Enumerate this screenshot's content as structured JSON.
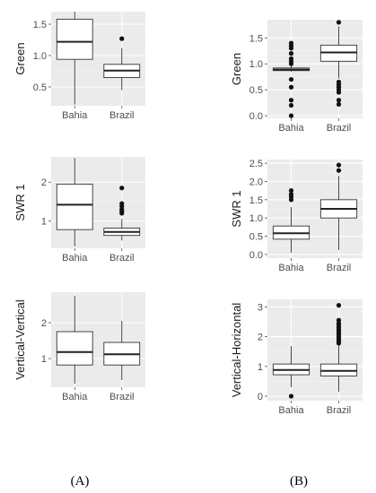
{
  "panel_labels": [
    "(A)",
    "(B)"
  ],
  "chart_data": [
    {
      "type": "box",
      "column": "A",
      "ylabel": "Green",
      "categories": [
        "Bahia",
        "Brazil"
      ],
      "ylim": [
        0.2,
        1.7
      ],
      "yticks": [
        0.5,
        1.0,
        1.5
      ],
      "tick_labels": [
        "0.5",
        "1.0",
        "1.5"
      ],
      "grid": true,
      "boxes": [
        {
          "name": "Bahia",
          "min": 0.22,
          "q1": 0.94,
          "median": 1.22,
          "q3": 1.58,
          "max": 1.7,
          "outliers": []
        },
        {
          "name": "Brazil",
          "min": 0.45,
          "q1": 0.65,
          "median": 0.76,
          "q3": 0.86,
          "max": 1.12,
          "outliers": [
            1.27
          ]
        }
      ]
    },
    {
      "type": "box",
      "column": "B",
      "ylabel": "Green",
      "categories": [
        "Bahia",
        "Brazil"
      ],
      "ylim": [
        -0.05,
        1.85
      ],
      "yticks": [
        0.0,
        0.5,
        1.0,
        1.5
      ],
      "tick_labels": [
        "0.0",
        "0.5",
        "1.0",
        "1.5"
      ],
      "grid": true,
      "boxes": [
        {
          "name": "Bahia",
          "min": 0.85,
          "q1": 0.87,
          "median": 0.89,
          "q3": 0.92,
          "max": 0.96,
          "outliers": [
            0.0,
            0.2,
            0.3,
            0.55,
            0.7,
            1.0,
            1.05,
            1.1,
            1.2,
            1.3,
            1.35,
            1.4
          ]
        },
        {
          "name": "Brazil",
          "min": 0.72,
          "q1": 1.05,
          "median": 1.22,
          "q3": 1.36,
          "max": 1.72,
          "outliers": [
            0.22,
            0.3,
            0.45,
            0.5,
            0.55,
            0.6,
            0.65,
            1.8
          ]
        }
      ]
    },
    {
      "type": "box",
      "column": "A",
      "ylabel": "SWR 1",
      "categories": [
        "Bahia",
        "Brazil"
      ],
      "ylim": [
        0.3,
        2.65
      ],
      "yticks": [
        1,
        2
      ],
      "tick_labels": [
        "1",
        "2"
      ],
      "grid": true,
      "boxes": [
        {
          "name": "Bahia",
          "min": 0.35,
          "q1": 0.78,
          "median": 1.42,
          "q3": 1.95,
          "max": 2.62,
          "outliers": []
        },
        {
          "name": "Brazil",
          "min": 0.5,
          "q1": 0.63,
          "median": 0.72,
          "q3": 0.82,
          "max": 1.05,
          "outliers": [
            1.2,
            1.25,
            1.3,
            1.38,
            1.45,
            1.85
          ]
        }
      ]
    },
    {
      "type": "box",
      "column": "B",
      "ylabel": "SWR 1",
      "categories": [
        "Bahia",
        "Brazil"
      ],
      "ylim": [
        -0.1,
        2.6
      ],
      "yticks": [
        0.0,
        0.5,
        1.0,
        1.5,
        2.0,
        2.5
      ],
      "tick_labels": [
        "0.0",
        "0.5",
        "1.0",
        "1.5",
        "2.0",
        "2.5"
      ],
      "grid": true,
      "boxes": [
        {
          "name": "Bahia",
          "min": 0.05,
          "q1": 0.42,
          "median": 0.58,
          "q3": 0.78,
          "max": 1.3,
          "outliers": [
            1.5,
            1.58,
            1.65,
            1.75
          ]
        },
        {
          "name": "Brazil",
          "min": 0.12,
          "q1": 1.0,
          "median": 1.25,
          "q3": 1.5,
          "max": 2.15,
          "outliers": [
            2.3,
            2.45
          ]
        }
      ]
    },
    {
      "type": "box",
      "column": "A",
      "ylabel": "Vertical-Vertical",
      "categories": [
        "Bahia",
        "Brazil"
      ],
      "ylim": [
        0.2,
        2.85
      ],
      "yticks": [
        1,
        2
      ],
      "tick_labels": [
        "1",
        "2"
      ],
      "grid": true,
      "boxes": [
        {
          "name": "Bahia",
          "min": 0.3,
          "q1": 0.82,
          "median": 1.18,
          "q3": 1.75,
          "max": 2.75,
          "outliers": []
        },
        {
          "name": "Brazil",
          "min": 0.4,
          "q1": 0.82,
          "median": 1.12,
          "q3": 1.45,
          "max": 2.05,
          "outliers": []
        }
      ]
    },
    {
      "type": "box",
      "column": "B",
      "ylabel": "Vertical-Horizontal",
      "categories": [
        "Bahia",
        "Brazil"
      ],
      "ylim": [
        -0.15,
        3.25
      ],
      "yticks": [
        0,
        1,
        2,
        3
      ],
      "tick_labels": [
        "0",
        "1",
        "2",
        "3"
      ],
      "grid": true,
      "boxes": [
        {
          "name": "Bahia",
          "min": 0.3,
          "q1": 0.72,
          "median": 0.88,
          "q3": 1.08,
          "max": 1.68,
          "outliers": [
            0.0
          ]
        },
        {
          "name": "Brazil",
          "min": 0.15,
          "q1": 0.68,
          "median": 0.85,
          "q3": 1.08,
          "max": 1.72,
          "outliers": [
            1.78,
            1.85,
            1.92,
            2.0,
            2.08,
            2.15,
            2.22,
            2.3,
            2.38,
            2.45,
            2.55,
            3.05
          ]
        }
      ]
    }
  ]
}
